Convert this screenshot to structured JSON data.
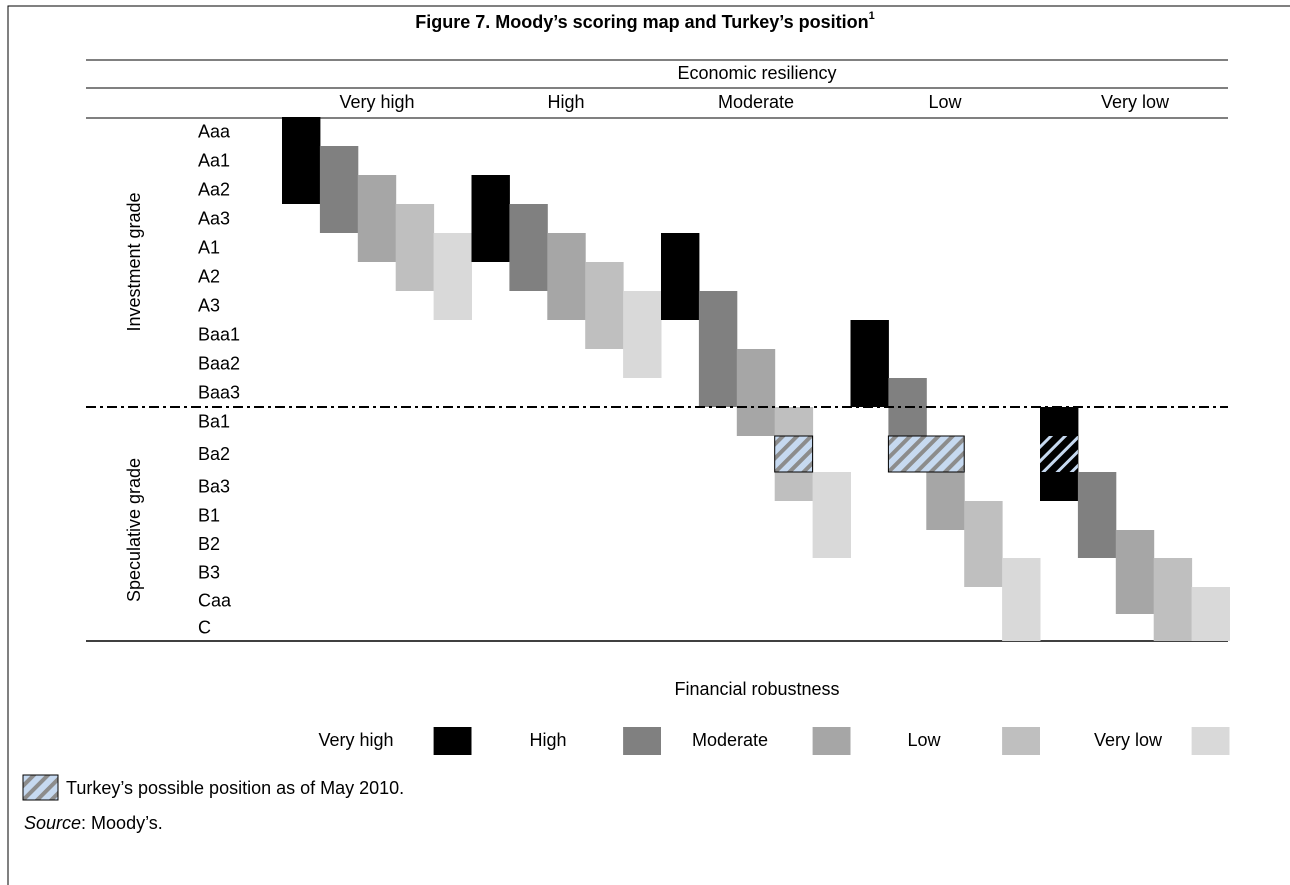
{
  "header": {
    "title": "Figure 7. Moody’s scoring map and Turkey’s position",
    "footnote_mark": "1"
  },
  "columns_title": "Economic resiliency",
  "columns": [
    "Very high",
    "High",
    "Moderate",
    "Low",
    "Very low"
  ],
  "groups": [
    "Investment grade",
    "Speculative grade"
  ],
  "ratings": [
    "Aaa",
    "Aa1",
    "Aa2",
    "Aa3",
    "A1",
    "A2",
    "A3",
    "Baa1",
    "Baa2",
    "Baa3",
    "Ba1",
    "Ba2",
    "Ba3",
    "B1",
    "B2",
    "B3",
    "Caa",
    "C"
  ],
  "legend_title": "Financial robustness",
  "legend": [
    "Very high",
    "High",
    "Moderate",
    "Low",
    "Very low"
  ],
  "note": "Turkey’s possible position as of May 2010.",
  "source": {
    "label": "Source",
    "text": ": Moody’s."
  }
}
